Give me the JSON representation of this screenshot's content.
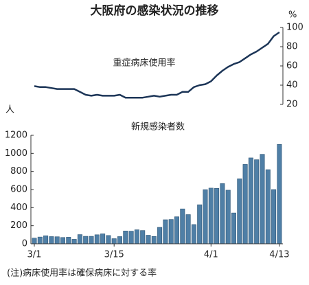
{
  "title": "大阪府の感染状況の推移",
  "note": "(注)病床使用率は確保病床に対する率",
  "chart_data": [
    {
      "type": "line",
      "y_unit": "%",
      "axis_side": "right",
      "ylim": [
        20,
        100
      ],
      "yticks": [
        20,
        40,
        60,
        80,
        100
      ],
      "grid": false,
      "series": [
        {
          "name": "重症病床使用率",
          "color": "#1c3557",
          "values": [
            39,
            38,
            38,
            37,
            36,
            36,
            36,
            36,
            33,
            30,
            29,
            30,
            29,
            29,
            29,
            30,
            27,
            27,
            27,
            27,
            28,
            29,
            28,
            29,
            30,
            30,
            33,
            33,
            38,
            40,
            41,
            44,
            50,
            55,
            59,
            62,
            64,
            68,
            72,
            75,
            79,
            83,
            91,
            95
          ]
        }
      ]
    },
    {
      "type": "bar",
      "y_unit": "人",
      "axis_side": "left",
      "ylim": [
        0,
        1200
      ],
      "yticks": [
        0,
        200,
        400,
        600,
        800,
        1000,
        1200
      ],
      "grid": false,
      "categories": [
        "3/1",
        null,
        null,
        null,
        null,
        null,
        null,
        null,
        null,
        null,
        null,
        null,
        null,
        null,
        "3/15",
        null,
        null,
        null,
        null,
        null,
        null,
        null,
        null,
        null,
        null,
        null,
        null,
        null,
        null,
        null,
        null,
        "4/1",
        null,
        null,
        null,
        null,
        null,
        null,
        null,
        null,
        null,
        null,
        null,
        "4/13"
      ],
      "series": [
        {
          "name": "新規感染者数",
          "color": "#4f7fa6",
          "values": [
            63,
            75,
            89,
            80,
            78,
            70,
            73,
            50,
            102,
            83,
            83,
            100,
            110,
            92,
            57,
            80,
            142,
            140,
            155,
            147,
            95,
            82,
            182,
            266,
            269,
            299,
            386,
            323,
            213,
            432,
            599,
            616,
            613,
            666,
            593,
            341,
            719,
            878,
            950,
            930,
            990,
            820,
            600,
            1099
          ]
        }
      ]
    }
  ]
}
